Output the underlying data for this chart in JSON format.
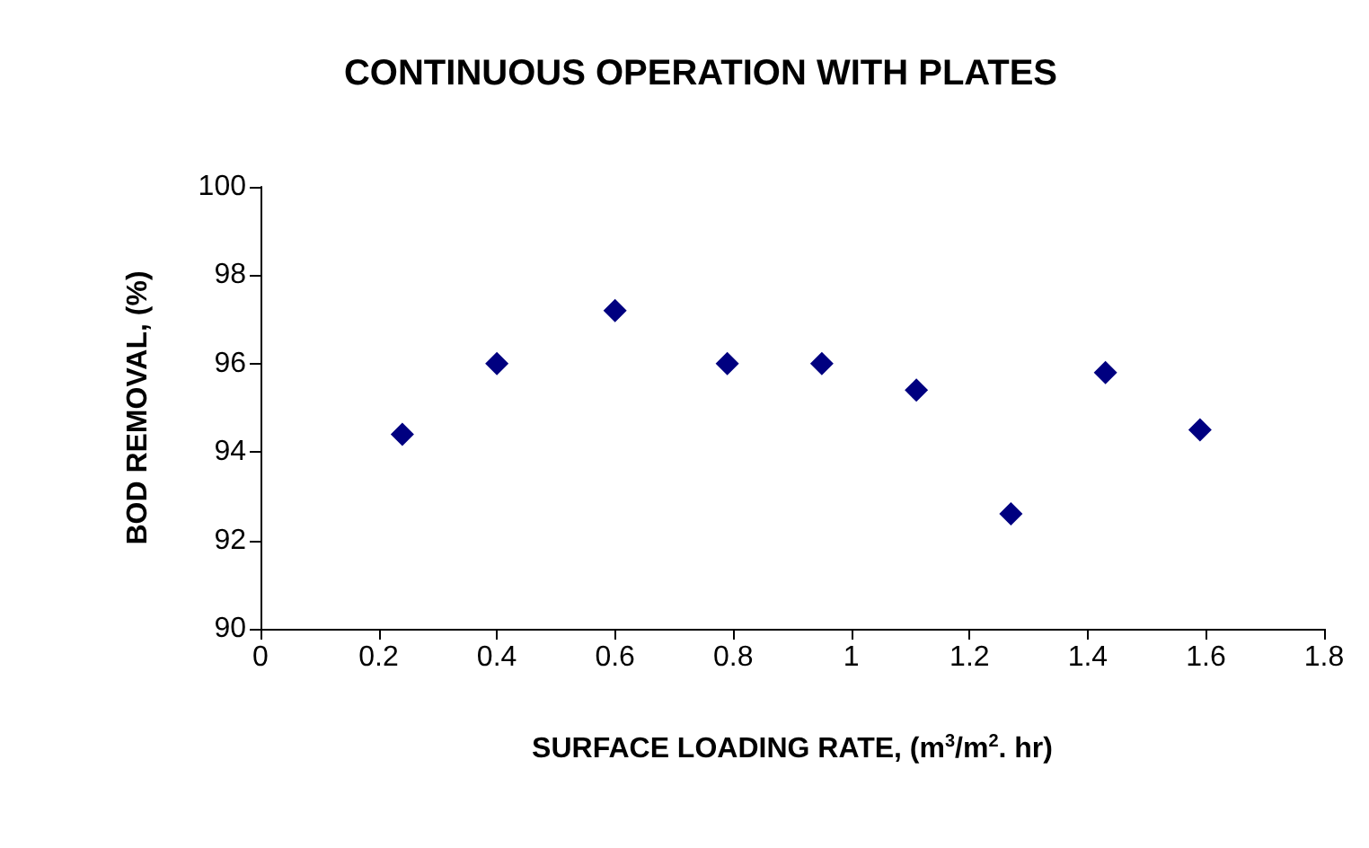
{
  "chart_data": {
    "type": "scatter",
    "title": "CONTINUOUS OPERATION WITH PLATES",
    "xlabel": "SURFACE LOADING RATE, (m$^{3}$/m$^{2}$. hr)",
    "ylabel": "BOD REMOVAL, (%)",
    "x": [
      0.24,
      0.4,
      0.6,
      0.79,
      0.95,
      1.11,
      1.27,
      1.43,
      1.59
    ],
    "values": [
      94.4,
      96.0,
      97.2,
      96.0,
      96.0,
      95.4,
      92.6,
      95.8,
      94.5
    ],
    "color": "#000080",
    "marker": "diamond",
    "xlim": [
      0,
      1.8
    ],
    "xticks": [
      0,
      0.2,
      0.4,
      0.6,
      0.8,
      1,
      1.2,
      1.4,
      1.6,
      1.8
    ],
    "ylim": [
      90,
      100
    ],
    "yticks": [
      90,
      92,
      94,
      96,
      98,
      100
    ]
  }
}
